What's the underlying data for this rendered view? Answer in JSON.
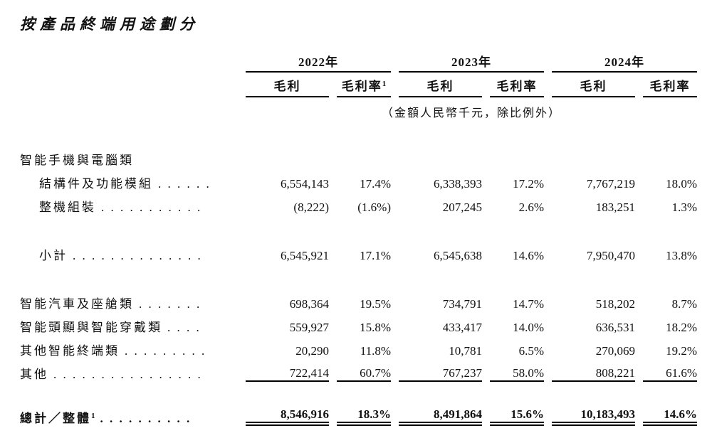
{
  "title": "按產品終端用途劃分",
  "header": {
    "years": [
      "2022年",
      "2023年",
      "2024年"
    ],
    "profit_label": "毛利",
    "margin_label": "毛利率",
    "margin_footnote": "1",
    "note": "（金額人民幣千元，除比例外）"
  },
  "rows": [
    {
      "label": "智能手機與電腦類",
      "dots": "",
      "values": null
    },
    {
      "label": "結構件及功能模組",
      "dots": ". . . . . .",
      "values": [
        "6,554,143",
        "17.4%",
        "6,338,393",
        "17.2%",
        "7,767,219",
        "18.0%"
      ]
    },
    {
      "label": "整機組裝",
      "dots": ". . . . . . . . . . .",
      "values": [
        "(8,222)",
        "(1.6%)",
        "207,245",
        "2.6%",
        "183,251",
        "1.3%"
      ]
    },
    {
      "label": "小計",
      "dots": ". . . . . . . . . . . . . .",
      "values": [
        "6,545,921",
        "17.1%",
        "6,545,638",
        "14.6%",
        "7,950,470",
        "13.8%"
      ]
    },
    {
      "label": "智能汽車及座艙類",
      "dots": ". . . . . . .",
      "values": [
        "698,364",
        "19.5%",
        "734,791",
        "14.7%",
        "518,202",
        "8.7%"
      ]
    },
    {
      "label": "智能頭顯與智能穿戴類",
      "dots": ". . . .",
      "values": [
        "559,927",
        "15.8%",
        "433,417",
        "14.0%",
        "636,531",
        "18.2%"
      ]
    },
    {
      "label": "其他智能終端類",
      "dots": ". . . . . . . . .",
      "values": [
        "20,290",
        "11.8%",
        "10,781",
        "6.5%",
        "270,069",
        "19.2%"
      ]
    },
    {
      "label": "其他",
      "dots": ". . . . . . . . . . . . . . . .",
      "values": [
        "722,414",
        "60.7%",
        "767,237",
        "58.0%",
        "808,221",
        "61.6%"
      ]
    },
    {
      "label": "總計／整體",
      "footnote": "1",
      "dots": ". . . . . . . . . .",
      "values": [
        "8,546,916",
        "18.3%",
        "8,491,864",
        "15.6%",
        "10,183,493",
        "14.6%"
      ]
    }
  ]
}
